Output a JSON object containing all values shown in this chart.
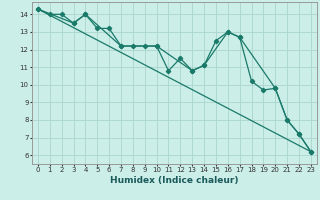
{
  "xlabel": "Humidex (Indice chaleur)",
  "bg_color": "#cceee8",
  "line_color": "#1a7a6a",
  "grid_color": "#aad4cc",
  "xlim": [
    -0.5,
    23.5
  ],
  "ylim": [
    5.5,
    14.7
  ],
  "yticks": [
    6,
    7,
    8,
    9,
    10,
    11,
    12,
    13,
    14
  ],
  "xticks": [
    0,
    1,
    2,
    3,
    4,
    5,
    6,
    7,
    8,
    9,
    10,
    11,
    12,
    13,
    14,
    15,
    16,
    17,
    18,
    19,
    20,
    21,
    22,
    23
  ],
  "series1_x": [
    0,
    1,
    2,
    3,
    4,
    5,
    6,
    7,
    8,
    9,
    10,
    11,
    12,
    13,
    14,
    15,
    16,
    17,
    18,
    19,
    20,
    21,
    22,
    23
  ],
  "series1_y": [
    14.3,
    14.0,
    14.0,
    13.5,
    14.0,
    13.2,
    13.2,
    12.2,
    12.2,
    12.2,
    12.2,
    10.8,
    11.5,
    10.8,
    11.1,
    12.5,
    13.0,
    12.7,
    10.2,
    9.7,
    9.8,
    8.0,
    7.2,
    6.2
  ],
  "series2_x": [
    0,
    3,
    4,
    7,
    10,
    13,
    14,
    16,
    17,
    20,
    21,
    22,
    23
  ],
  "series2_y": [
    14.3,
    13.5,
    14.0,
    12.2,
    12.2,
    10.8,
    11.1,
    13.0,
    12.7,
    9.8,
    8.0,
    7.2,
    6.2
  ],
  "series3_x": [
    0,
    23
  ],
  "series3_y": [
    14.3,
    6.2
  ],
  "tick_fontsize": 5.0,
  "xlabel_fontsize": 6.5
}
